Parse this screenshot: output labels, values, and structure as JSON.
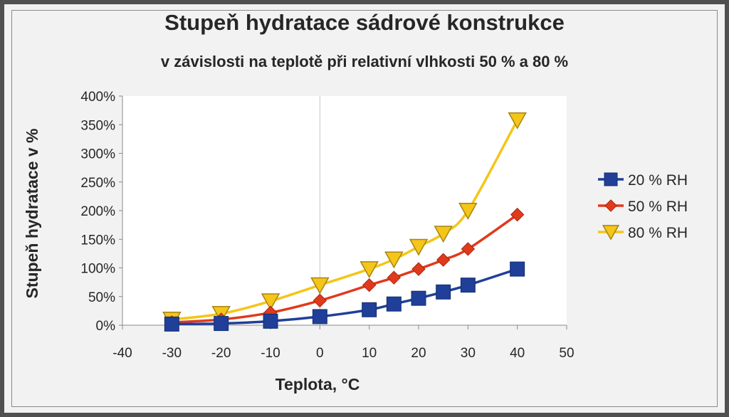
{
  "chart_data": {
    "type": "line",
    "title": "Stupeň hydratace sádrové konstrukce",
    "subtitle": "v závislosti na teplotě při relativní vlhkosti 50 % a 80 %",
    "xlabel": "Teplota, °C",
    "ylabel": "Stupeň hydratace v %",
    "xlim": [
      -40,
      50
    ],
    "ylim": [
      0,
      400
    ],
    "x_ticks": [
      -40,
      -30,
      -20,
      -10,
      0,
      10,
      20,
      30,
      40,
      50
    ],
    "y_ticks": [
      0,
      50,
      100,
      150,
      200,
      250,
      300,
      350,
      400
    ],
    "y_tick_format": "percent",
    "grid": "vertical line at x=0 only",
    "legend_position": "right",
    "series": [
      {
        "name": "20 % RH",
        "color": "#1f3f99",
        "marker": "square",
        "x": [
          -30,
          -20,
          -10,
          0,
          10,
          15,
          20,
          25,
          30,
          40
        ],
        "y": [
          2,
          3,
          7,
          15,
          27,
          37,
          47,
          58,
          70,
          98
        ]
      },
      {
        "name": "50 % RH",
        "color": "#e03a1c",
        "marker": "diamond",
        "x": [
          -30,
          -20,
          -10,
          0,
          10,
          15,
          20,
          25,
          30,
          40
        ],
        "y": [
          5,
          10,
          22,
          43,
          70,
          83,
          98,
          114,
          133,
          193
        ]
      },
      {
        "name": "80 % RH",
        "color": "#f5c518",
        "marker": "triangle-down",
        "x": [
          -30,
          -20,
          -10,
          0,
          10,
          15,
          20,
          25,
          30,
          40
        ],
        "y": [
          10,
          20,
          42,
          70,
          98,
          115,
          137,
          160,
          200,
          358
        ]
      }
    ]
  }
}
